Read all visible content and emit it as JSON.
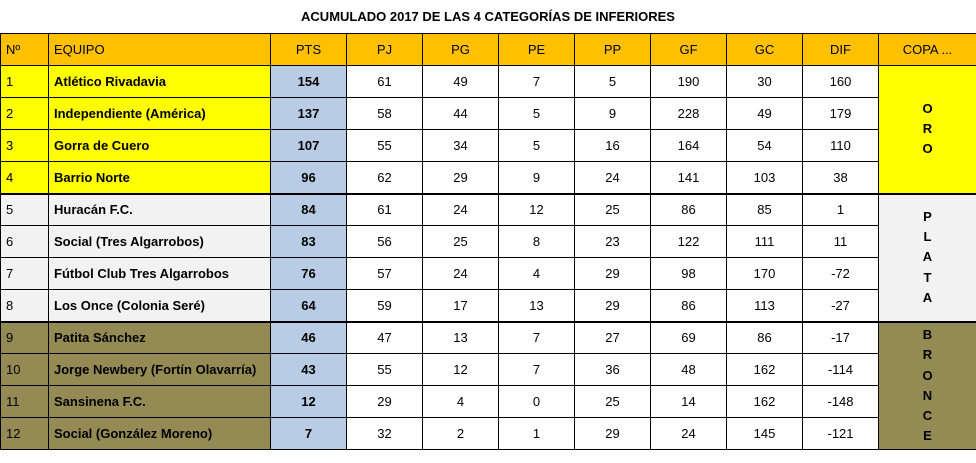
{
  "title": "ACUMULADO 2017 DE LAS 4 CATEGORÍAS DE INFERIORES",
  "headers": [
    "Nº",
    "EQUIPO",
    "PTS",
    "PJ",
    "PG",
    "PE",
    "PP",
    "GF",
    "GC",
    "DIF",
    "COPA ..."
  ],
  "groups": [
    {
      "cup": "ORO",
      "color": "#ffff00",
      "rows": [
        {
          "n": "1",
          "team": "Atlético Rivadavia",
          "pts": "154",
          "pj": "61",
          "pg": "49",
          "pe": "7",
          "pp": "5",
          "gf": "190",
          "gc": "30",
          "dif": "160"
        },
        {
          "n": "2",
          "team": "Independiente (América)",
          "pts": "137",
          "pj": "58",
          "pg": "44",
          "pe": "5",
          "pp": "9",
          "gf": "228",
          "gc": "49",
          "dif": "179"
        },
        {
          "n": "3",
          "team": "Gorra de Cuero",
          "pts": "107",
          "pj": "55",
          "pg": "34",
          "pe": "5",
          "pp": "16",
          "gf": "164",
          "gc": "54",
          "dif": "110"
        },
        {
          "n": "4",
          "team": "Barrio Norte",
          "pts": "96",
          "pj": "62",
          "pg": "29",
          "pe": "9",
          "pp": "24",
          "gf": "141",
          "gc": "103",
          "dif": "38"
        }
      ]
    },
    {
      "cup": "PLATA",
      "color": "#f2f2f2",
      "rows": [
        {
          "n": "5",
          "team": "Huracán F.C.",
          "pts": "84",
          "pj": "61",
          "pg": "24",
          "pe": "12",
          "pp": "25",
          "gf": "86",
          "gc": "85",
          "dif": "1"
        },
        {
          "n": "6",
          "team": "Social (Tres Algarrobos)",
          "pts": "83",
          "pj": "56",
          "pg": "25",
          "pe": "8",
          "pp": "23",
          "gf": "122",
          "gc": "111",
          "dif": "11"
        },
        {
          "n": "7",
          "team": "Fútbol Club Tres Algarrobos",
          "pts": "76",
          "pj": "57",
          "pg": "24",
          "pe": "4",
          "pp": "29",
          "gf": "98",
          "gc": "170",
          "dif": "-72"
        },
        {
          "n": "8",
          "team": "Los Once (Colonia Seré)",
          "pts": "64",
          "pj": "59",
          "pg": "17",
          "pe": "13",
          "pp": "29",
          "gf": "86",
          "gc": "113",
          "dif": "-27"
        }
      ]
    },
    {
      "cup": "BRONCE",
      "color": "#948a54",
      "rows": [
        {
          "n": "9",
          "team": "Patita Sánchez",
          "pts": "46",
          "pj": "47",
          "pg": "13",
          "pe": "7",
          "pp": "27",
          "gf": "69",
          "gc": "86",
          "dif": "-17"
        },
        {
          "n": "10",
          "team": "Jorge Newbery (Fortín Olavarría)",
          "pts": "43",
          "pj": "55",
          "pg": "12",
          "pe": "7",
          "pp": "36",
          "gf": "48",
          "gc": "162",
          "dif": "-114"
        },
        {
          "n": "11",
          "team": "Sansinena F.C.",
          "pts": "12",
          "pj": "29",
          "pg": "4",
          "pe": "0",
          "pp": "25",
          "gf": "14",
          "gc": "162",
          "dif": "-148"
        },
        {
          "n": "12",
          "team": "Social (González Moreno)",
          "pts": "7",
          "pj": "32",
          "pg": "2",
          "pe": "1",
          "pp": "29",
          "gf": "24",
          "gc": "145",
          "dif": "-121"
        }
      ]
    }
  ]
}
